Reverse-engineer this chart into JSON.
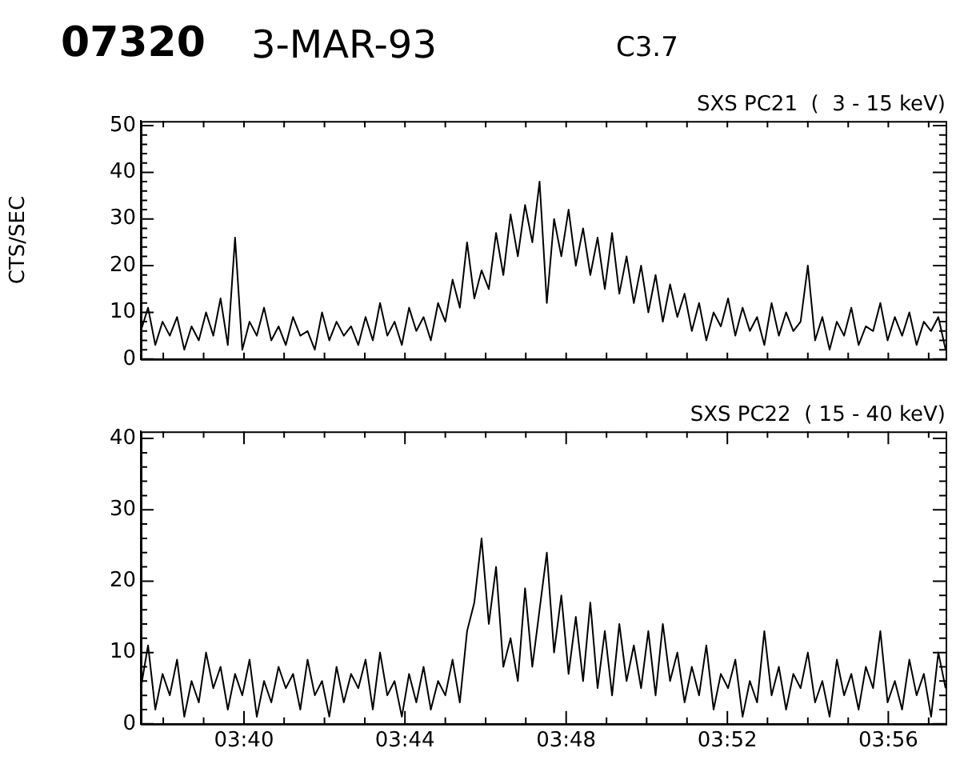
{
  "chart_data": [
    {
      "type": "line",
      "title": "SXS PC21  (  3 - 15 keV)",
      "annotations": [
        "07320",
        "3-MAR-93",
        "C3.7"
      ],
      "ylabel": "CTS/SEC",
      "marker": "none",
      "line_style": "solid",
      "grid": false,
      "legend": false,
      "tick_labels": "y",
      "x": [
        3.624,
        3.627,
        3.63,
        3.633,
        3.636,
        3.639,
        3.642,
        3.645,
        3.648,
        3.651,
        3.654,
        3.657,
        3.66,
        3.663,
        3.666,
        3.669,
        3.672,
        3.675,
        3.678,
        3.681,
        3.684,
        3.687,
        3.69,
        3.693,
        3.696,
        3.699,
        3.702,
        3.705,
        3.708,
        3.711,
        3.714,
        3.717,
        3.72,
        3.723,
        3.726,
        3.729,
        3.732,
        3.735,
        3.738,
        3.741,
        3.744,
        3.747,
        3.75,
        3.753,
        3.756,
        3.759,
        3.762,
        3.765,
        3.768,
        3.771,
        3.774,
        3.777,
        3.78,
        3.783,
        3.786,
        3.789,
        3.792,
        3.795,
        3.798,
        3.801,
        3.804,
        3.807,
        3.81,
        3.813,
        3.816,
        3.819,
        3.822,
        3.825,
        3.828,
        3.831,
        3.834,
        3.837,
        3.84,
        3.843,
        3.846,
        3.849,
        3.852,
        3.855,
        3.858,
        3.861,
        3.864,
        3.867,
        3.87,
        3.873,
        3.876,
        3.879,
        3.882,
        3.885,
        3.888,
        3.891,
        3.894,
        3.897,
        3.9,
        3.903,
        3.906,
        3.909,
        3.912,
        3.915,
        3.918,
        3.921,
        3.924,
        3.927,
        3.93,
        3.933,
        3.936,
        3.939,
        3.942,
        3.945,
        3.948,
        3.951,
        3.954,
        3.957
      ],
      "series": [
        {
          "color": "#000000",
          "values": [
            6,
            11,
            3,
            8,
            5,
            9,
            2,
            7,
            4,
            10,
            5,
            13,
            3,
            26,
            2,
            8,
            5,
            11,
            4,
            7,
            3,
            9,
            5,
            6,
            2,
            10,
            4,
            8,
            5,
            7,
            3,
            9,
            4,
            12,
            5,
            8,
            3,
            11,
            6,
            9,
            4,
            12,
            8,
            17,
            11,
            25,
            13,
            19,
            15,
            27,
            18,
            31,
            22,
            33,
            25,
            38,
            12,
            30,
            22,
            32,
            20,
            28,
            18,
            26,
            15,
            27,
            14,
            22,
            12,
            20,
            10,
            18,
            8,
            16,
            9,
            14,
            6,
            12,
            4,
            10,
            7,
            13,
            5,
            11,
            6,
            9,
            3,
            12,
            5,
            10,
            6,
            8,
            20,
            4,
            9,
            2,
            8,
            5,
            11,
            3,
            7,
            6,
            12,
            4,
            9,
            5,
            10,
            3,
            8,
            6,
            9,
            2
          ]
        }
      ],
      "xlim": [
        3.624,
        3.957
      ],
      "xticks": [
        {
          "value": 3.6333,
          "label": null
        },
        {
          "value": 3.65,
          "label": null
        },
        {
          "value": 3.6667,
          "label": null
        },
        {
          "value": 3.6833,
          "label": null
        },
        {
          "value": 3.7,
          "label": null
        },
        {
          "value": 3.7167,
          "label": null
        },
        {
          "value": 3.7333,
          "label": null
        },
        {
          "value": 3.75,
          "label": null
        },
        {
          "value": 3.7667,
          "label": null
        },
        {
          "value": 3.7833,
          "label": null
        },
        {
          "value": 3.8,
          "label": null
        },
        {
          "value": 3.8167,
          "label": null
        },
        {
          "value": 3.8333,
          "label": null
        },
        {
          "value": 3.85,
          "label": null
        },
        {
          "value": 3.8667,
          "label": null
        },
        {
          "value": 3.8833,
          "label": null
        },
        {
          "value": 3.9,
          "label": null
        },
        {
          "value": 3.9167,
          "label": null
        },
        {
          "value": 3.9333,
          "label": null
        },
        {
          "value": 3.95,
          "label": null
        }
      ],
      "ylim": [
        0,
        51
      ],
      "yticks": [
        0,
        {
          "value": 2,
          "label": null
        },
        {
          "value": 4,
          "label": null
        },
        {
          "value": 6,
          "label": null
        },
        {
          "value": 8,
          "label": null
        },
        10,
        {
          "value": 12,
          "label": null
        },
        {
          "value": 14,
          "label": null
        },
        {
          "value": 16,
          "label": null
        },
        {
          "value": 18,
          "label": null
        },
        20,
        {
          "value": 22,
          "label": null
        },
        {
          "value": 24,
          "label": null
        },
        {
          "value": 26,
          "label": null
        },
        {
          "value": 28,
          "label": null
        },
        30,
        {
          "value": 32,
          "label": null
        },
        {
          "value": 34,
          "label": null
        },
        {
          "value": 36,
          "label": null
        },
        {
          "value": 38,
          "label": null
        },
        40,
        {
          "value": 42,
          "label": null
        },
        {
          "value": 44,
          "label": null
        },
        {
          "value": 46,
          "label": null
        },
        {
          "value": 48,
          "label": null
        },
        50
      ]
    },
    {
      "type": "line",
      "title": "SXS PC22  ( 15 - 40 keV)",
      "marker": "none",
      "line_style": "solid",
      "grid": false,
      "legend": false,
      "x": [
        3.624,
        3.627,
        3.63,
        3.633,
        3.636,
        3.639,
        3.642,
        3.645,
        3.648,
        3.651,
        3.654,
        3.657,
        3.66,
        3.663,
        3.666,
        3.669,
        3.672,
        3.675,
        3.678,
        3.681,
        3.684,
        3.687,
        3.69,
        3.693,
        3.696,
        3.699,
        3.702,
        3.705,
        3.708,
        3.711,
        3.714,
        3.717,
        3.72,
        3.723,
        3.726,
        3.729,
        3.732,
        3.735,
        3.738,
        3.741,
        3.744,
        3.747,
        3.75,
        3.753,
        3.756,
        3.759,
        3.762,
        3.765,
        3.768,
        3.771,
        3.774,
        3.777,
        3.78,
        3.783,
        3.786,
        3.789,
        3.792,
        3.795,
        3.798,
        3.801,
        3.804,
        3.807,
        3.81,
        3.813,
        3.816,
        3.819,
        3.822,
        3.825,
        3.828,
        3.831,
        3.834,
        3.837,
        3.84,
        3.843,
        3.846,
        3.849,
        3.852,
        3.855,
        3.858,
        3.861,
        3.864,
        3.867,
        3.87,
        3.873,
        3.876,
        3.879,
        3.882,
        3.885,
        3.888,
        3.891,
        3.894,
        3.897,
        3.9,
        3.903,
        3.906,
        3.909,
        3.912,
        3.915,
        3.918,
        3.921,
        3.924,
        3.927,
        3.93,
        3.933,
        3.936,
        3.939,
        3.942,
        3.945,
        3.948,
        3.951,
        3.954,
        3.957
      ],
      "series": [
        {
          "color": "#000000",
          "values": [
            5,
            11,
            2,
            7,
            4,
            9,
            1,
            6,
            3,
            10,
            5,
            8,
            2,
            7,
            4,
            9,
            1,
            6,
            3,
            8,
            5,
            7,
            2,
            9,
            4,
            6,
            1,
            8,
            3,
            7,
            5,
            9,
            2,
            10,
            4,
            6,
            1,
            7,
            3,
            8,
            2,
            6,
            4,
            9,
            3,
            13,
            17,
            26,
            14,
            22,
            8,
            12,
            6,
            19,
            8,
            16,
            24,
            10,
            18,
            7,
            15,
            6,
            17,
            5,
            13,
            4,
            14,
            6,
            11,
            5,
            13,
            4,
            14,
            6,
            10,
            3,
            8,
            4,
            11,
            2,
            7,
            5,
            9,
            1,
            6,
            3,
            13,
            4,
            8,
            2,
            7,
            5,
            10,
            3,
            6,
            1,
            9,
            4,
            7,
            2,
            8,
            5,
            13,
            3,
            6,
            2,
            9,
            4,
            7,
            1,
            10,
            5
          ]
        }
      ],
      "xlim": [
        3.624,
        3.957
      ],
      "xticks": [
        {
          "value": 3.6333,
          "label": null
        },
        {
          "value": 3.65,
          "label": null
        },
        {
          "value": 3.6667,
          "label": "03:40"
        },
        {
          "value": 3.6833,
          "label": null
        },
        {
          "value": 3.7,
          "label": null
        },
        {
          "value": 3.7167,
          "label": null
        },
        {
          "value": 3.7333,
          "label": "03:44"
        },
        {
          "value": 3.75,
          "label": null
        },
        {
          "value": 3.7667,
          "label": null
        },
        {
          "value": 3.7833,
          "label": null
        },
        {
          "value": 3.8,
          "label": "03:48"
        },
        {
          "value": 3.8167,
          "label": null
        },
        {
          "value": 3.8333,
          "label": null
        },
        {
          "value": 3.85,
          "label": null
        },
        {
          "value": 3.8667,
          "label": "03:52"
        },
        {
          "value": 3.8833,
          "label": null
        },
        {
          "value": 3.9,
          "label": null
        },
        {
          "value": 3.9167,
          "label": null
        },
        {
          "value": 3.9333,
          "label": "03:56"
        },
        {
          "value": 3.95,
          "label": null
        }
      ],
      "ylim": [
        0,
        41
      ],
      "yticks": [
        0,
        {
          "value": 2,
          "label": null
        },
        {
          "value": 4,
          "label": null
        },
        {
          "value": 6,
          "label": null
        },
        {
          "value": 8,
          "label": null
        },
        10,
        {
          "value": 12,
          "label": null
        },
        {
          "value": 14,
          "label": null
        },
        {
          "value": 16,
          "label": null
        },
        {
          "value": 18,
          "label": null
        },
        20,
        {
          "value": 22,
          "label": null
        },
        {
          "value": 24,
          "label": null
        },
        {
          "value": 26,
          "label": null
        },
        {
          "value": 28,
          "label": null
        },
        30,
        {
          "value": 32,
          "label": null
        },
        {
          "value": 34,
          "label": null
        },
        {
          "value": 36,
          "label": null
        },
        {
          "value": 38,
          "label": null
        },
        40
      ]
    }
  ]
}
